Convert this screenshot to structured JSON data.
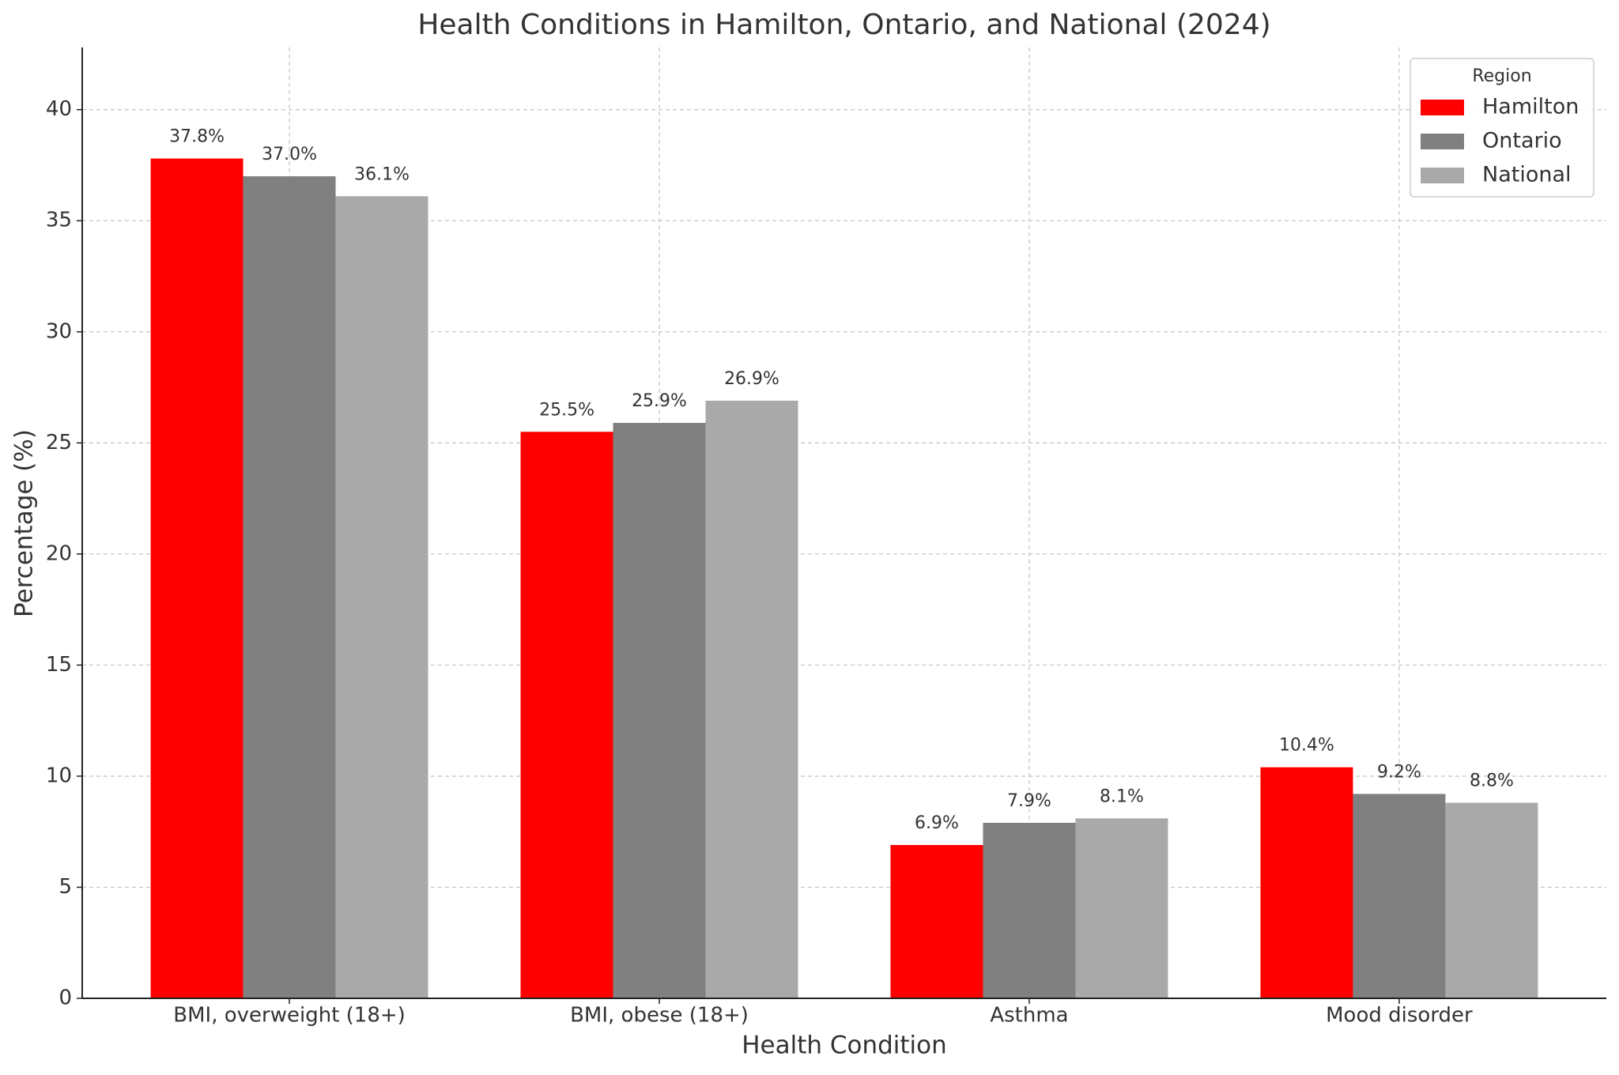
{
  "chart_data": {
    "type": "bar",
    "title": "Health Conditions in Hamilton, Ontario, and National (2024)",
    "x_label": "Health Condition",
    "y_label": "Percentage (%)",
    "categories": [
      "BMI, overweight (18+)",
      "BMI, obese (18+)",
      "Asthma",
      "Mood disorder"
    ],
    "series": [
      {
        "name": "Hamilton",
        "color": "#ff0000",
        "values": [
          37.8,
          25.5,
          6.9,
          10.4
        ],
        "value_labels": [
          "37.8%",
          "25.5%",
          "6.9%",
          "10.4%"
        ]
      },
      {
        "name": "Ontario",
        "color": "#808080",
        "values": [
          37.0,
          25.9,
          7.9,
          9.2
        ],
        "value_labels": [
          "37.0%",
          "25.9%",
          "7.9%",
          "9.2%"
        ]
      },
      {
        "name": "National",
        "color": "#a9a9a9",
        "values": [
          36.1,
          26.9,
          8.1,
          8.8
        ],
        "value_labels": [
          "36.1%",
          "26.9%",
          "8.1%",
          "8.8%"
        ]
      }
    ],
    "legend_title": "Region",
    "legend": "upper right",
    "ylim": [
      0,
      42.8
    ],
    "yticks": [
      0,
      5,
      10,
      15,
      20,
      25,
      30,
      35,
      40
    ],
    "grid": true
  }
}
